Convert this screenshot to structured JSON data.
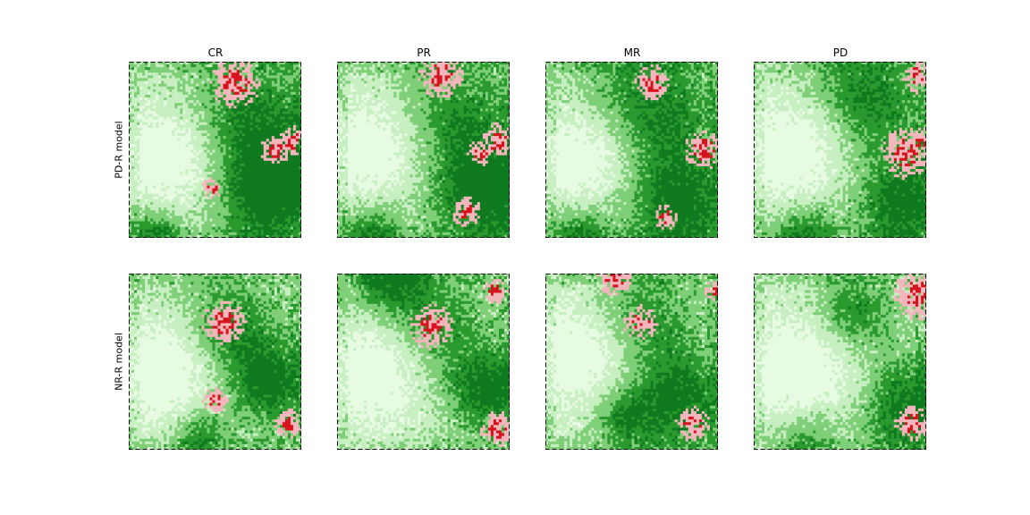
{
  "chart_data": {
    "type": "heatmap",
    "columns": [
      "CR",
      "PR",
      "MR",
      "PD"
    ],
    "rows": [
      "PD-R model",
      "NR-R model"
    ],
    "grid": [
      64,
      64
    ],
    "frame_style": "dashed",
    "colors": {
      "pale": "#e6fbe2",
      "light": "#c8efc2",
      "mid": "#7fcf78",
      "dark": "#2a9a2f",
      "deep": "#0f7a1f",
      "pink": "#f2b6bc",
      "red": "#d6141e"
    },
    "panels": [
      {
        "row": 0,
        "col": 0,
        "title": "CR",
        "hotspots": [
          [
            0.62,
            0.12,
            0.1
          ],
          [
            0.95,
            0.45,
            0.06
          ],
          [
            0.85,
            0.5,
            0.06
          ],
          [
            0.48,
            0.72,
            0.04
          ]
        ],
        "greens": [
          [
            0.65,
            0.4,
            0.25
          ],
          [
            0.8,
            0.75,
            0.2
          ],
          [
            0.15,
            0.95,
            0.1
          ]
        ],
        "paleRegions": [
          [
            0.22,
            0.55,
            0.28
          ]
        ]
      },
      {
        "row": 0,
        "col": 1,
        "title": "PR",
        "hotspots": [
          [
            0.6,
            0.08,
            0.09
          ],
          [
            0.93,
            0.45,
            0.07
          ],
          [
            0.83,
            0.52,
            0.05
          ],
          [
            0.75,
            0.85,
            0.06
          ]
        ],
        "greens": [
          [
            0.6,
            0.4,
            0.25
          ],
          [
            0.85,
            0.75,
            0.2
          ],
          [
            0.2,
            0.95,
            0.12
          ]
        ],
        "paleRegions": [
          [
            0.22,
            0.5,
            0.3
          ]
        ]
      },
      {
        "row": 0,
        "col": 2,
        "title": "MR",
        "hotspots": [
          [
            0.62,
            0.12,
            0.07
          ],
          [
            0.92,
            0.5,
            0.08
          ],
          [
            0.7,
            0.88,
            0.05
          ]
        ],
        "greens": [
          [
            0.55,
            0.3,
            0.25
          ],
          [
            0.75,
            0.8,
            0.2
          ],
          [
            0.2,
            0.95,
            0.12
          ]
        ],
        "paleRegions": [
          [
            0.2,
            0.55,
            0.28
          ]
        ]
      },
      {
        "row": 0,
        "col": 3,
        "title": "PD",
        "hotspots": [
          [
            0.96,
            0.08,
            0.07
          ],
          [
            0.88,
            0.52,
            0.1
          ],
          [
            0.97,
            0.45,
            0.05
          ]
        ],
        "greens": [
          [
            0.6,
            0.25,
            0.22
          ],
          [
            0.85,
            0.8,
            0.18
          ],
          [
            0.3,
            0.95,
            0.12
          ]
        ],
        "paleRegions": [
          [
            0.22,
            0.5,
            0.3
          ]
        ]
      },
      {
        "row": 1,
        "col": 0,
        "title": "",
        "hotspots": [
          [
            0.55,
            0.28,
            0.09
          ],
          [
            0.5,
            0.72,
            0.05
          ],
          [
            0.93,
            0.85,
            0.06
          ]
        ],
        "greens": [
          [
            0.55,
            0.35,
            0.18
          ],
          [
            0.8,
            0.62,
            0.15
          ],
          [
            0.4,
            0.9,
            0.1
          ]
        ],
        "paleRegions": [
          [
            0.2,
            0.55,
            0.28
          ]
        ]
      },
      {
        "row": 1,
        "col": 1,
        "title": "",
        "hotspots": [
          [
            0.55,
            0.3,
            0.09
          ],
          [
            0.93,
            0.88,
            0.07
          ],
          [
            0.92,
            0.1,
            0.05
          ]
        ],
        "greens": [
          [
            0.5,
            0.35,
            0.2
          ],
          [
            0.85,
            0.65,
            0.15
          ],
          [
            0.3,
            0.05,
            0.15
          ]
        ],
        "paleRegions": [
          [
            0.22,
            0.55,
            0.3
          ]
        ]
      },
      {
        "row": 1,
        "col": 2,
        "title": "",
        "hotspots": [
          [
            0.4,
            0.03,
            0.07
          ],
          [
            0.55,
            0.28,
            0.07
          ],
          [
            0.85,
            0.85,
            0.07
          ],
          [
            0.98,
            0.1,
            0.04
          ]
        ],
        "greens": [
          [
            0.5,
            0.3,
            0.2
          ],
          [
            0.75,
            0.7,
            0.18
          ],
          [
            0.45,
            0.8,
            0.12
          ]
        ],
        "paleRegions": [
          [
            0.2,
            0.45,
            0.3
          ]
        ]
      },
      {
        "row": 1,
        "col": 3,
        "title": "",
        "hotspots": [
          [
            0.95,
            0.12,
            0.1
          ],
          [
            0.92,
            0.85,
            0.07
          ]
        ],
        "greens": [
          [
            0.55,
            0.25,
            0.15
          ],
          [
            0.85,
            0.75,
            0.18
          ],
          [
            0.3,
            0.9,
            0.12
          ]
        ],
        "paleRegions": [
          [
            0.25,
            0.55,
            0.32
          ]
        ]
      }
    ]
  }
}
